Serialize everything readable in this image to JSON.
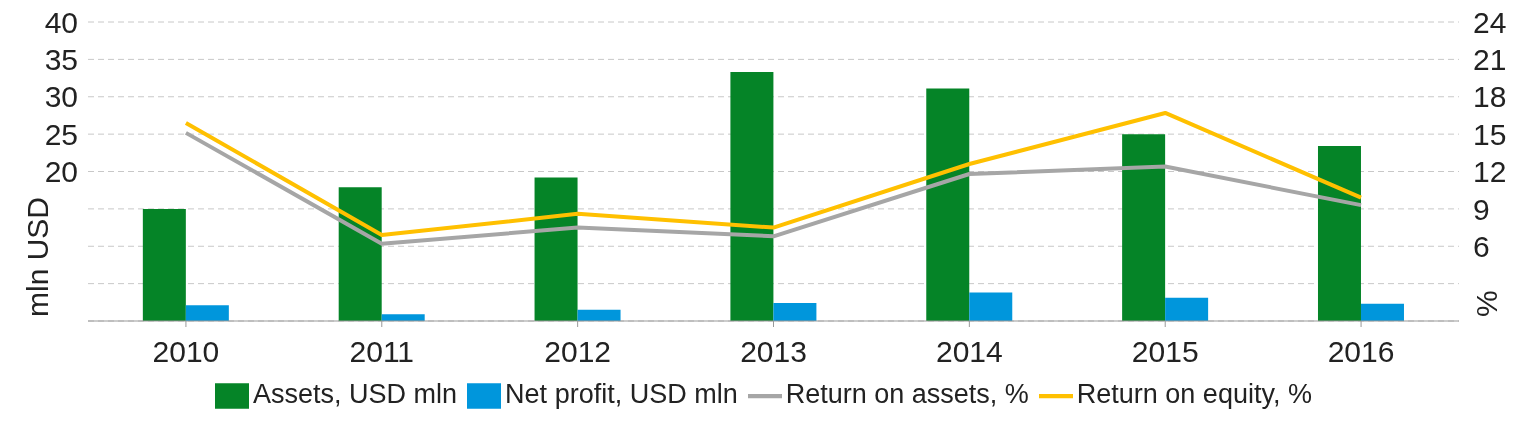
{
  "chart_data": {
    "type": "bar",
    "categories": [
      "2010",
      "2011",
      "2012",
      "2013",
      "2014",
      "2015",
      "2016"
    ],
    "series": [
      {
        "name": "Assets, USD mln",
        "color": "#058427",
        "values": [
          15.0,
          17.9,
          19.2,
          33.3,
          31.1,
          25.0,
          23.4
        ]
      },
      {
        "name": "Net profit, USD mln",
        "color": "#0096dc",
        "values": [
          2.1,
          0.9,
          1.5,
          2.4,
          3.8,
          3.1,
          2.3
        ]
      },
      {
        "name": "Return on assets, %",
        "type": "line",
        "axis": "y2",
        "color": "#a6a6a6",
        "values": [
          15.1,
          6.2,
          7.5,
          6.8,
          11.8,
          12.4,
          9.3
        ]
      },
      {
        "name": "Return on equity, %",
        "type": "line",
        "axis": "y2",
        "color": "#ffc000",
        "values": [
          15.9,
          6.9,
          8.6,
          7.5,
          12.6,
          16.7,
          9.9
        ]
      }
    ],
    "ylabel": "mln USD",
    "y2label": "%",
    "ylim": [
      0,
      40
    ],
    "yticks": [
      {
        "value": 0,
        "label": null
      },
      {
        "value": 5,
        "label": null
      },
      {
        "value": 10,
        "label": null
      },
      {
        "value": 15,
        "label": null
      },
      20,
      25,
      30,
      35,
      40
    ],
    "y2lim": [
      0,
      24
    ],
    "y2ticks": [
      6,
      9,
      12,
      15,
      18,
      21,
      24
    ],
    "grid": "y",
    "legend": "bottom",
    "marker": "none",
    "line_style": "solid"
  }
}
